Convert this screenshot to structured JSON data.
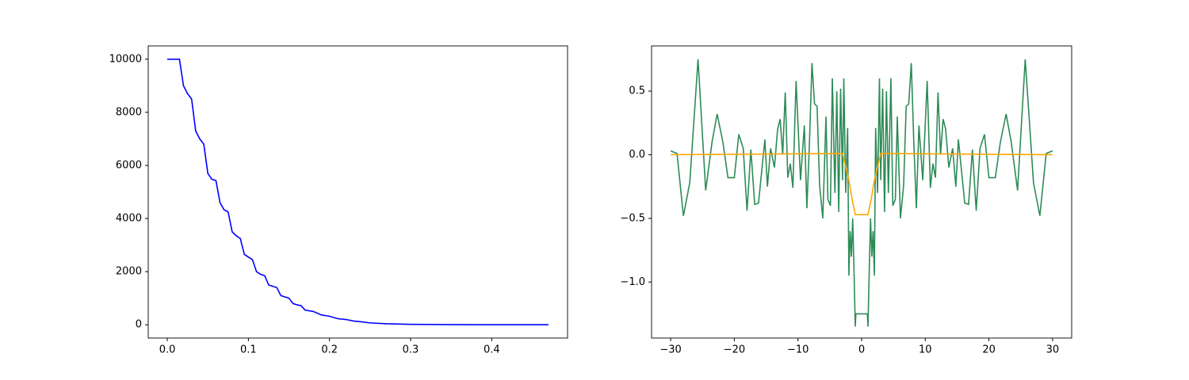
{
  "chart_data": [
    {
      "type": "line",
      "xlim": [
        -0.0235,
        0.4935
      ],
      "ylim": [
        -500,
        10500
      ],
      "xticks": [
        {
          "value": 0,
          "label": "0.0"
        },
        0.1,
        0.2,
        0.3,
        0.4
      ],
      "yticks": [
        0,
        2000,
        4000,
        6000,
        8000,
        10000
      ],
      "series": [
        {
          "color": "#0000ff",
          "x": [
            0,
            0.015,
            0.02,
            0.025,
            0.03,
            0.035,
            0.04,
            0.045,
            0.05,
            0.055,
            0.06,
            0.065,
            0.07,
            0.075,
            0.08,
            0.085,
            0.09,
            0.095,
            0.1,
            0.105,
            0.11,
            0.115,
            0.12,
            0.125,
            0.13,
            0.135,
            0.14,
            0.145,
            0.15,
            0.155,
            0.16,
            0.165,
            0.17,
            0.18,
            0.19,
            0.2,
            0.21,
            0.22,
            0.23,
            0.24,
            0.25,
            0.27,
            0.3,
            0.35,
            0.4,
            0.47
          ],
          "values": [
            10000,
            10000,
            9000,
            8700,
            8500,
            7300,
            7000,
            6800,
            5700,
            5480,
            5430,
            4600,
            4330,
            4250,
            3500,
            3350,
            3250,
            2650,
            2550,
            2450,
            2000,
            1900,
            1850,
            1500,
            1450,
            1400,
            1100,
            1050,
            1000,
            800,
            750,
            720,
            550,
            500,
            370,
            320,
            230,
            200,
            140,
            110,
            70,
            40,
            15,
            5,
            2,
            0
          ]
        }
      ]
    },
    {
      "type": "line",
      "xlim": [
        -33,
        33
      ],
      "ylim": [
        -1.44,
        0.855
      ],
      "xticks": [
        {
          "value": -30,
          "label": "−30"
        },
        {
          "value": -20,
          "label": "−20"
        },
        {
          "value": -10,
          "label": "−10"
        },
        0,
        10,
        20,
        30
      ],
      "yticks": [
        {
          "value": -1,
          "label": "−1.0"
        },
        {
          "value": -0.5,
          "label": "−0.5"
        },
        {
          "value": 0,
          "label": "0.0"
        },
        0.5
      ],
      "series": [
        {
          "color": "#2e8b57",
          "x": [
            -30,
            -29,
            -28,
            -27,
            -25.7,
            -24.5,
            -23.5,
            -22.7,
            -21.8,
            -21,
            -20,
            -19.3,
            -18.6,
            -18,
            -17.4,
            -16.8,
            -16.2,
            -15.2,
            -14.8,
            -14.3,
            -13.7,
            -13.2,
            -12.8,
            -12.4,
            -12,
            -11.6,
            -11.2,
            -10.8,
            -10.3,
            -9.6,
            -9,
            -8.6,
            -8.2,
            -7.8,
            -7.4,
            -7,
            -6.6,
            -6.1,
            -5.6,
            -5.3,
            -4.9,
            -4.6,
            -4.2,
            -3.9,
            -3.6,
            -3.3,
            -3,
            -2.8,
            -2.5,
            -2.2,
            -2,
            -1.8,
            -1.6,
            -1.4,
            -1.2,
            -1,
            -0.9,
            0.9,
            1,
            1.2,
            1.4,
            1.6,
            1.8,
            2,
            2.2,
            2.5,
            2.8,
            3,
            3.3,
            3.6,
            3.9,
            4.2,
            4.6,
            4.9,
            5.3,
            5.6,
            6.1,
            6.6,
            7,
            7.4,
            7.8,
            8.2,
            8.6,
            9,
            9.6,
            10.3,
            10.8,
            11.2,
            11.6,
            12,
            12.4,
            12.8,
            13.2,
            13.7,
            14.3,
            14.8,
            15.2,
            16.2,
            16.8,
            17.4,
            18,
            18.6,
            19.3,
            20,
            21,
            21.8,
            22.7,
            23.5,
            24.5,
            25.7,
            27,
            28,
            29,
            30
          ],
          "values": [
            0.03,
            0.01,
            -0.48,
            -0.22,
            0.75,
            -0.28,
            0.1,
            0.32,
            0.1,
            -0.18,
            -0.18,
            0.16,
            0.05,
            -0.44,
            0.04,
            -0.39,
            -0.38,
            0.12,
            -0.25,
            0.05,
            -0.1,
            0.2,
            0.28,
            0,
            0.49,
            -0.18,
            -0.07,
            -0.26,
            0.58,
            -0.2,
            0.23,
            -0.42,
            0.09,
            0.72,
            0.4,
            0.38,
            -0.24,
            -0.5,
            0.3,
            -0.35,
            -0.4,
            0.6,
            -0.3,
            0.5,
            -0.45,
            0.52,
            -0.2,
            0.6,
            -0.3,
            0.21,
            -0.95,
            -0.6,
            -0.8,
            -0.5,
            -0.9,
            -1.35,
            -1.25,
            -1.25,
            -1.35,
            -0.9,
            -0.5,
            -0.8,
            -0.6,
            -0.95,
            0.21,
            -0.3,
            0.6,
            -0.2,
            0.52,
            -0.45,
            0.5,
            -0.3,
            0.6,
            -0.4,
            -0.35,
            0.3,
            -0.5,
            -0.24,
            0.38,
            0.4,
            0.72,
            0.09,
            -0.42,
            0.23,
            -0.2,
            0.58,
            -0.26,
            -0.07,
            -0.18,
            0.49,
            0,
            0.28,
            0.2,
            -0.1,
            0.05,
            -0.25,
            0.12,
            -0.38,
            -0.39,
            0.04,
            -0.44,
            0.05,
            0.16,
            -0.18,
            -0.18,
            0.1,
            0.32,
            0.1,
            -0.28,
            0.75,
            -0.22,
            -0.48,
            0.01,
            0.03
          ]
        },
        {
          "color": "#ffa500",
          "x": [
            -30,
            -4,
            -3,
            -2,
            -1.5,
            -1,
            1,
            1.5,
            2,
            3,
            4,
            30
          ],
          "values": [
            0,
            0.01,
            0.01,
            -0.2,
            -0.35,
            -0.47,
            -0.47,
            -0.35,
            -0.2,
            0.01,
            0.01,
            0
          ]
        }
      ]
    }
  ]
}
